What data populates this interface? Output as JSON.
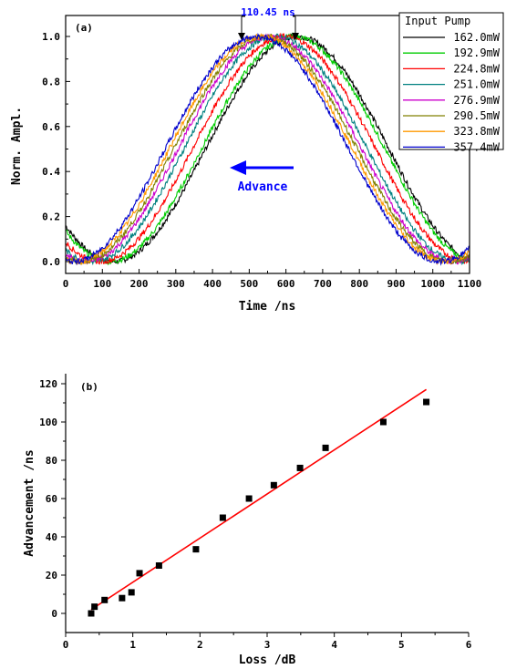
{
  "chart_data": [
    {
      "type": "line",
      "panel_label": "(a)",
      "xlabel": "Time /ns",
      "ylabel": "Norm. Ampl.",
      "xlim": [
        0,
        1100
      ],
      "ylim": [
        0,
        1.0
      ],
      "xticks": [
        "0",
        "100",
        "200",
        "300",
        "400",
        "500",
        "600",
        "700",
        "800",
        "900",
        "1000",
        "1100"
      ],
      "yticks": [
        "0.0",
        "0.2",
        "0.4",
        "0.6",
        "0.8",
        "1.0"
      ],
      "legend_title": "Input Pump",
      "legend_position": "top-right",
      "series": [
        {
          "name": "162.0mW",
          "color": "#000000",
          "peak_ns": 631
        },
        {
          "name": "192.9mW",
          "color": "#00cc00",
          "peak_ns": 620
        },
        {
          "name": "224.8mW",
          "color": "#ff0000",
          "peak_ns": 595
        },
        {
          "name": "251.0mW",
          "color": "#008080",
          "peak_ns": 572
        },
        {
          "name": "276.9mW",
          "color": "#cc00cc",
          "peak_ns": 556
        },
        {
          "name": "290.5mW",
          "color": "#808000",
          "peak_ns": 544
        },
        {
          "name": "323.8mW",
          "color": "#ff9900",
          "peak_ns": 532
        },
        {
          "name": "357.4mW",
          "color": "#0000cc",
          "peak_ns": 521
        }
      ],
      "annotations": {
        "delay_label": "110.45 ns",
        "advance_label": "Advance",
        "advance_color": "#0000ff"
      },
      "grid": false
    },
    {
      "type": "scatter",
      "panel_label": "(b)",
      "xlabel": "Loss /dB",
      "ylabel": "Advancement /ns",
      "xlim": [
        0,
        6
      ],
      "ylim": [
        -10,
        125
      ],
      "xticks": [
        "0",
        "1",
        "2",
        "3",
        "4",
        "5",
        "6"
      ],
      "yticks": [
        "0",
        "20",
        "40",
        "60",
        "80",
        "100",
        "120"
      ],
      "points": [
        {
          "x": 0.38,
          "y": 0
        },
        {
          "x": 0.43,
          "y": 3.5
        },
        {
          "x": 0.58,
          "y": 7
        },
        {
          "x": 0.84,
          "y": 8
        },
        {
          "x": 0.98,
          "y": 11
        },
        {
          "x": 1.1,
          "y": 21
        },
        {
          "x": 1.39,
          "y": 25
        },
        {
          "x": 1.94,
          "y": 33.5
        },
        {
          "x": 2.34,
          "y": 50
        },
        {
          "x": 2.73,
          "y": 60
        },
        {
          "x": 3.1,
          "y": 67
        },
        {
          "x": 3.49,
          "y": 76
        },
        {
          "x": 3.87,
          "y": 86.5
        },
        {
          "x": 4.73,
          "y": 100
        },
        {
          "x": 5.37,
          "y": 110.45
        }
      ],
      "fit_line": {
        "x": [
          0.38,
          5.37
        ],
        "y": [
          2,
          117
        ],
        "color": "#ff0000"
      },
      "grid": false
    }
  ]
}
